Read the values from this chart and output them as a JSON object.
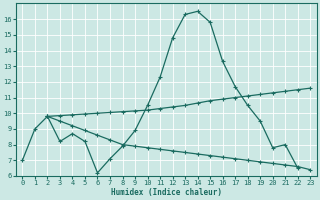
{
  "background_color": "#cce8e4",
  "grid_color": "#b0d8d4",
  "line_color": "#1a6b60",
  "xlabel": "Humidex (Indice chaleur)",
  "xlim": [
    -0.5,
    23.5
  ],
  "ylim": [
    6,
    17
  ],
  "yticks": [
    6,
    7,
    8,
    9,
    10,
    11,
    12,
    13,
    14,
    15,
    16
  ],
  "xticks": [
    0,
    1,
    2,
    3,
    4,
    5,
    6,
    7,
    8,
    9,
    10,
    11,
    12,
    13,
    14,
    15,
    16,
    17,
    18,
    19,
    20,
    21,
    22,
    23
  ],
  "curve_main_x": [
    0,
    1,
    2,
    3,
    4,
    5,
    6,
    7,
    8,
    9,
    10,
    11,
    12,
    13,
    14,
    15,
    16,
    17,
    18,
    19,
    20,
    21,
    22
  ],
  "curve_main_y": [
    7.0,
    9.0,
    9.8,
    8.2,
    8.7,
    8.2,
    6.2,
    7.1,
    7.9,
    8.9,
    10.5,
    12.3,
    14.8,
    16.3,
    16.5,
    15.8,
    13.3,
    11.7,
    10.5,
    9.5,
    7.8,
    8.0,
    6.5
  ],
  "curve_upper_x": [
    2,
    3,
    4,
    5,
    6,
    7,
    8,
    9,
    10,
    11,
    12,
    13,
    14,
    15,
    16,
    17,
    18,
    19,
    20,
    21,
    22,
    23
  ],
  "curve_upper_y": [
    9.8,
    9.85,
    9.9,
    9.95,
    10.0,
    10.05,
    10.1,
    10.15,
    10.2,
    10.3,
    10.4,
    10.5,
    10.65,
    10.8,
    10.9,
    11.0,
    11.1,
    11.2,
    11.3,
    11.4,
    11.5,
    11.6
  ],
  "curve_lower_x": [
    2,
    3,
    4,
    5,
    6,
    7,
    8,
    9,
    10,
    11,
    12,
    13,
    14,
    15,
    16,
    17,
    18,
    19,
    20,
    21,
    22,
    23
  ],
  "curve_lower_y": [
    9.8,
    9.5,
    9.2,
    8.9,
    8.6,
    8.3,
    8.0,
    7.9,
    7.8,
    7.7,
    7.6,
    7.5,
    7.4,
    7.3,
    7.2,
    7.1,
    7.0,
    6.9,
    6.8,
    6.7,
    6.6,
    6.4
  ]
}
